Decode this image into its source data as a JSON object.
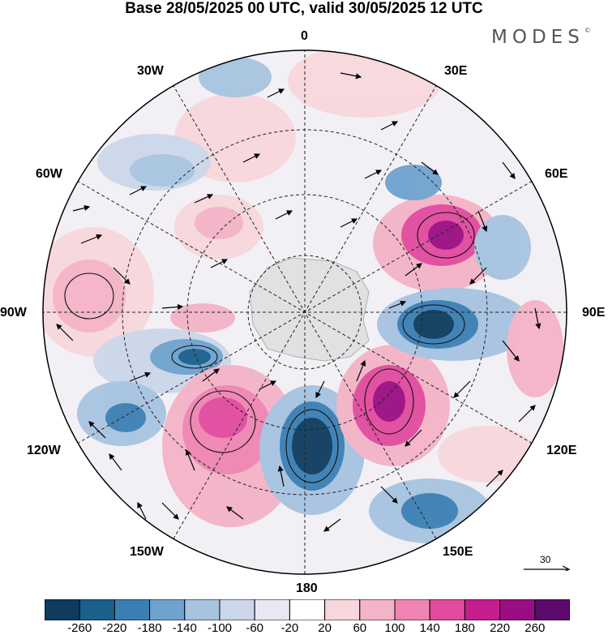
{
  "header": {
    "title": "Base 28/05/2025 00 UTC, valid 30/05/2025 12 UTC",
    "brand": "MODES"
  },
  "map": {
    "projection": "south polar stereographic",
    "longitude_labels": {
      "top": "0",
      "top_right": "30E",
      "right_upper": "60E",
      "right": "90E",
      "right_lower": "120E",
      "bottom_right": "150E",
      "bottom": "180",
      "bottom_left": "150W",
      "left_lower": "120W",
      "left": "90W",
      "left_upper": "60W",
      "top_left": "30W"
    },
    "reference_vector_value": "30"
  },
  "colorbar": {
    "colors": [
      "#0d3c5e",
      "#1b5f8c",
      "#3a7fb4",
      "#6ea3cf",
      "#a7c3e0",
      "#ccd6ea",
      "#e8e8f4",
      "#ffffff",
      "#f7d7dc",
      "#f4b3c6",
      "#ef84b2",
      "#e24a9e",
      "#c51c8e",
      "#9b0d82",
      "#5c0a6e"
    ],
    "tick_labels": [
      "-260",
      "-220",
      "-180",
      "-140",
      "-100",
      "-60",
      "-20",
      "20",
      "60",
      "100",
      "140",
      "180",
      "220",
      "260"
    ]
  }
}
